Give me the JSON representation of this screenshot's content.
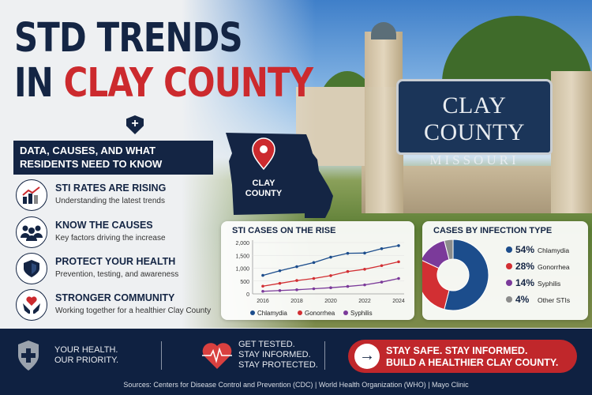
{
  "title": {
    "line1": "STD TRENDS",
    "line2_prefix": "IN ",
    "line2_accent": "CLAY COUNTY"
  },
  "banner": "DATA, CAUSES, AND WHAT RESIDENTS NEED TO KNOW",
  "items": [
    {
      "icon": "chart-rising-icon",
      "heading": "STI RATES ARE RISING",
      "sub": "Understanding the latest trends"
    },
    {
      "icon": "people-icon",
      "heading": "KNOW THE CAUSES",
      "sub": "Key factors driving the increase"
    },
    {
      "icon": "shield-icon",
      "heading": "PROTECT YOUR HEALTH",
      "sub": "Prevention, testing, and awareness"
    },
    {
      "icon": "heart-hands-icon",
      "heading": "STRONGER COMMUNITY",
      "sub": "Working together for a healthier Clay County"
    }
  ],
  "map": {
    "label_line1": "CLAY",
    "label_line2": "COUNTY"
  },
  "sign": {
    "line1": "CLAY COUNTY",
    "line2": "MISSOURI"
  },
  "colors": {
    "navy": "#142544",
    "red": "#cc2a2e",
    "chlamydia": "#1c4d8c",
    "gonorrhea": "#d22f33",
    "syphilis": "#7b3a9a",
    "other": "#8c8c8c"
  },
  "chart_data": [
    {
      "type": "line",
      "title": "STI CASES ON THE RISE",
      "x": [
        2016,
        2017,
        2018,
        2019,
        2020,
        2021,
        2022,
        2023,
        2024
      ],
      "xticks": [
        "2016",
        "2018",
        "2020",
        "2022",
        "2024"
      ],
      "yticks": [
        "0",
        "500",
        "1,000",
        "1,500",
        "2,000"
      ],
      "ylim": [
        0,
        2000
      ],
      "grid": true,
      "legend": "bottom",
      "series": [
        {
          "name": "Chlamydia",
          "values": [
            720,
            900,
            1060,
            1220,
            1430,
            1580,
            1590,
            1760,
            1880
          ]
        },
        {
          "name": "Gonorrhea",
          "values": [
            300,
            410,
            520,
            600,
            710,
            870,
            960,
            1100,
            1250
          ]
        },
        {
          "name": "Syphilis",
          "values": [
            100,
            130,
            160,
            200,
            240,
            290,
            350,
            460,
            600
          ]
        }
      ]
    },
    {
      "type": "pie",
      "title": "CASES BY INFECTION TYPE",
      "donut": true,
      "legend": "right",
      "slices": [
        {
          "name": "Chlamydia",
          "value": 54,
          "label": "54%"
        },
        {
          "name": "Gonorrhea",
          "value": 28,
          "label": "28%"
        },
        {
          "name": "Syphilis",
          "value": 14,
          "label": "14%"
        },
        {
          "name": "Other STIs",
          "value": 4,
          "label": "4%"
        }
      ]
    }
  ],
  "footer": {
    "left_line1": "YOUR HEALTH.",
    "left_line2": "OUR PRIORITY.",
    "mid_line1": "GET TESTED.",
    "mid_line2": "STAY INFORMED.",
    "mid_line3": "STAY PROTECTED.",
    "cta_line1": "STAY SAFE. STAY INFORMED.",
    "cta_line2": "BUILD A HEALTHIER CLAY COUNTY.",
    "sources": "Sources: Centers for Disease Control and Prevention (CDC)   |   World  Health Organization (WHO)   |   Mayo Clinic"
  }
}
